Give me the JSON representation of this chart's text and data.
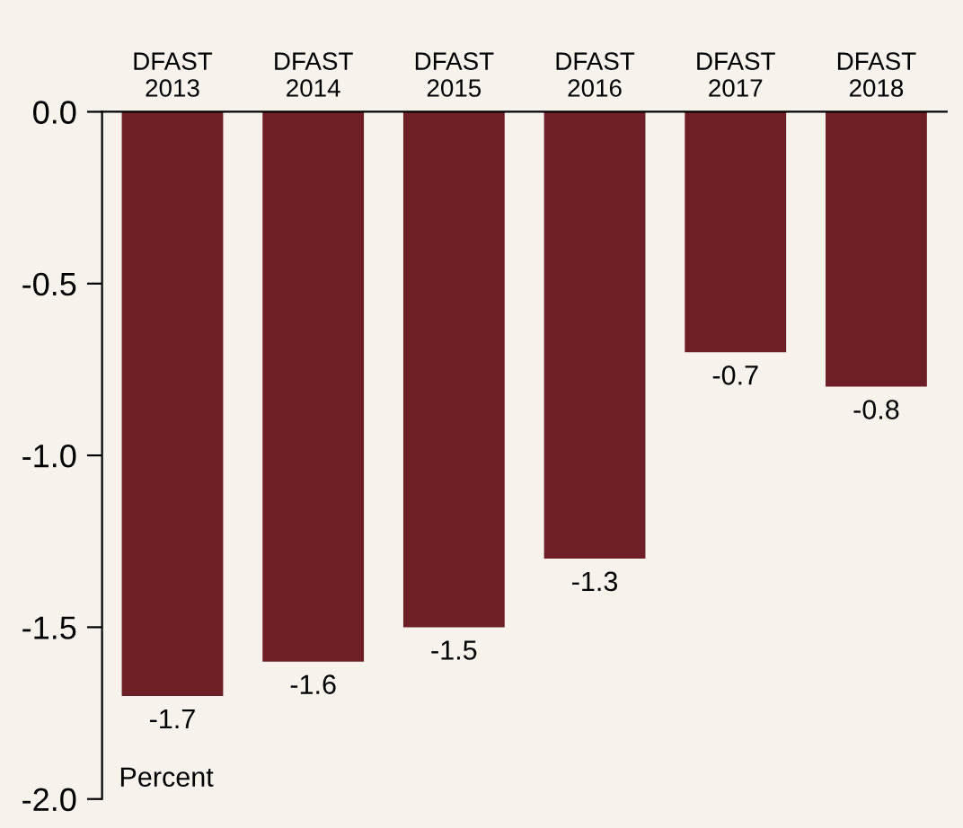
{
  "chart_data": {
    "type": "bar",
    "categories": [
      "DFAST\n2013",
      "DFAST\n2014",
      "DFAST\n2015",
      "DFAST\n2016",
      "DFAST\n2017",
      "DFAST\n2018"
    ],
    "values": [
      -1.7,
      -1.6,
      -1.5,
      -1.3,
      -0.7,
      -0.8
    ],
    "color": "#6e1f25",
    "ylim": [
      -2.0,
      0.0
    ],
    "yticks": [
      {
        "value": 0.0,
        "label": "0.0"
      },
      {
        "value": -0.5,
        "label": "-0.5"
      },
      {
        "value": -1.0,
        "label": "-1.0"
      },
      {
        "value": -1.5,
        "label": "-1.5"
      },
      {
        "value": -2.0,
        "label": "-2.0"
      }
    ],
    "annotations": [
      "Percent"
    ],
    "data_labels": true,
    "grid": false
  }
}
